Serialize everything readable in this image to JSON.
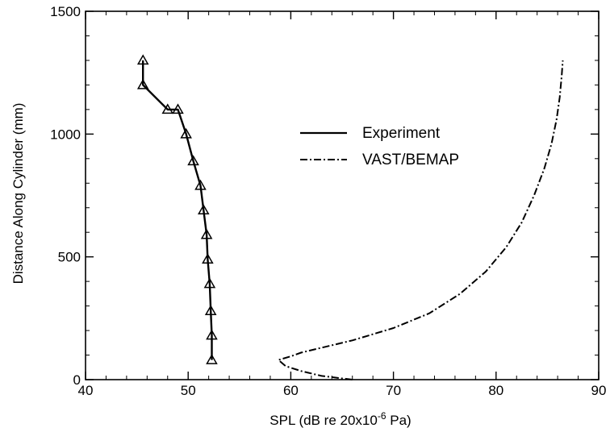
{
  "chart_data": {
    "type": "line",
    "title": "",
    "xlabel": "SPL (dB re 20x10",
    "xlabel_sup": "-6",
    "xlabel_end": " Pa)",
    "ylabel": "Distance Along Cylinder (mm)",
    "xlim": [
      40,
      90
    ],
    "ylim": [
      0,
      1500
    ],
    "xticks": [
      40,
      50,
      60,
      70,
      80,
      90
    ],
    "yticks": [
      0,
      500,
      1000,
      1500
    ],
    "grid": false,
    "legend_position": "center-right",
    "series": [
      {
        "name": "Experiment",
        "style": "solid",
        "marker": "triangle",
        "color": "#000000",
        "x": [
          52.3,
          52.3,
          52.2,
          52.1,
          51.9,
          51.8,
          51.5,
          51.2,
          50.5,
          49.8,
          49.0,
          48.0,
          45.6,
          45.6
        ],
        "y": [
          80,
          180,
          280,
          390,
          490,
          590,
          690,
          790,
          890,
          1000,
          1100,
          1100,
          1200,
          1300
        ]
      },
      {
        "name": "VAST/BEMAP",
        "style": "dash-dot",
        "marker": "none",
        "color": "#000000",
        "x": [
          66.0,
          63.0,
          61.0,
          59.5,
          58.8,
          60.0,
          61.0,
          63.0,
          66.0,
          70.0,
          73.5,
          76.5,
          79.0,
          81.0,
          82.5,
          83.7,
          84.7,
          85.4,
          85.9,
          86.2,
          86.4,
          86.5
        ],
        "y": [
          0,
          15,
          35,
          55,
          80,
          95,
          110,
          130,
          160,
          210,
          270,
          350,
          440,
          540,
          640,
          750,
          860,
          960,
          1060,
          1150,
          1240,
          1300
        ]
      }
    ]
  }
}
